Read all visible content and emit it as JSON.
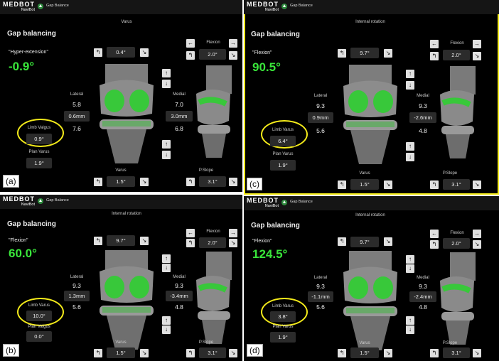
{
  "app": {
    "logo": "MEDBOT",
    "logo_sub": "NaviBot",
    "screen": "Gap Balance"
  },
  "panels": [
    {
      "tag": "(a)",
      "title": "Gap balancing",
      "mode": "\"Hyper-extension\"",
      "angle": "-0.9°",
      "top_label": "Varus",
      "top_value": "0.4°",
      "lateral_label": "Lateral",
      "lateral_top": "5.8",
      "lateral_gap": "0.6mm",
      "lateral_bottom": "7.6",
      "medial_label": "Medial",
      "medial_top": "7.0",
      "medial_gap": "3.0mm",
      "medial_bottom": "6.8",
      "limb_label": "Limb Valgus",
      "limb_value": "0.9°",
      "plan_label": "Plan Varus",
      "plan_value": "1.9°",
      "bottom_label": "Varus",
      "bottom_value": "1.5°",
      "flexion_label": "Flexion",
      "flexion_value": "2.0°",
      "slope_label": "P.Slope",
      "slope_value": "3.1°"
    },
    {
      "tag": "(c)",
      "title": "Gap balancing",
      "mode": "\"Flexion\"",
      "angle": "90.5°",
      "top_label": "Internal rotation",
      "top_value": "9.7°",
      "lateral_label": "Lateral",
      "lateral_top": "9.3",
      "lateral_gap": "0.9mm",
      "lateral_bottom": "5.6",
      "medial_label": "Medial",
      "medial_top": "9.3",
      "medial_gap": "-2.6mm",
      "medial_bottom": "4.8",
      "limb_label": "Limb Varus",
      "limb_value": "6.4°",
      "plan_label": "Plan Varus",
      "plan_value": "1.9°",
      "bottom_label": "Varus",
      "bottom_value": "1.5°",
      "flexion_label": "Flexion",
      "flexion_value": "2.0°",
      "slope_label": "P.Slope",
      "slope_value": "3.1°"
    },
    {
      "tag": "(b)",
      "title": "Gap balancing",
      "mode": "\"Flexion\"",
      "angle": "60.0°",
      "top_label": "Internal rotation",
      "top_value": "9.7°",
      "lateral_label": "Lateral",
      "lateral_top": "9.3",
      "lateral_gap": "1.3mm",
      "lateral_bottom": "5.6",
      "medial_label": "Medial",
      "medial_top": "9.3",
      "medial_gap": "-3.4mm",
      "medial_bottom": "4.8",
      "limb_label": "Limb Varus",
      "limb_value": "10.0°",
      "plan_label": "Plan Valgus",
      "plan_value": "0.0°",
      "bottom_label": "Varus",
      "bottom_value": "1.5°",
      "flexion_label": "Flexion",
      "flexion_value": "2.0°",
      "slope_label": "P.Slope",
      "slope_value": "3.1°"
    },
    {
      "tag": "(d)",
      "title": "Gap balancing",
      "mode": "\"Flexion\"",
      "angle": "124.5°",
      "top_label": "Internal rotation",
      "top_value": "9.7°",
      "lateral_label": "Lateral",
      "lateral_top": "9.3",
      "lateral_gap": "-1.1mm",
      "lateral_bottom": "5.6",
      "medial_label": "Medial",
      "medial_top": "9.3",
      "medial_gap": "-2.4mm",
      "medial_bottom": "4.8",
      "limb_label": "Limb Varus",
      "limb_value": "3.8°",
      "plan_label": "Plan Varus",
      "plan_value": "1.9°",
      "bottom_label": "Varus",
      "bottom_value": "1.5°",
      "flexion_label": "Flexion",
      "flexion_value": "2.0°",
      "slope_label": "P.Slope",
      "slope_value": "3.1°"
    }
  ],
  "colors": {
    "accent_green": "#39e53a",
    "highlight_yellow": "#f5ec1a",
    "panel_bg": "#000000"
  },
  "icons": {
    "rotate_left": "rotate-left-icon",
    "rotate_right": "rotate-right-icon",
    "arrow_up": "arrow-up-icon",
    "arrow_down": "arrow-down-icon",
    "arrow_left": "arrow-left-icon"
  }
}
